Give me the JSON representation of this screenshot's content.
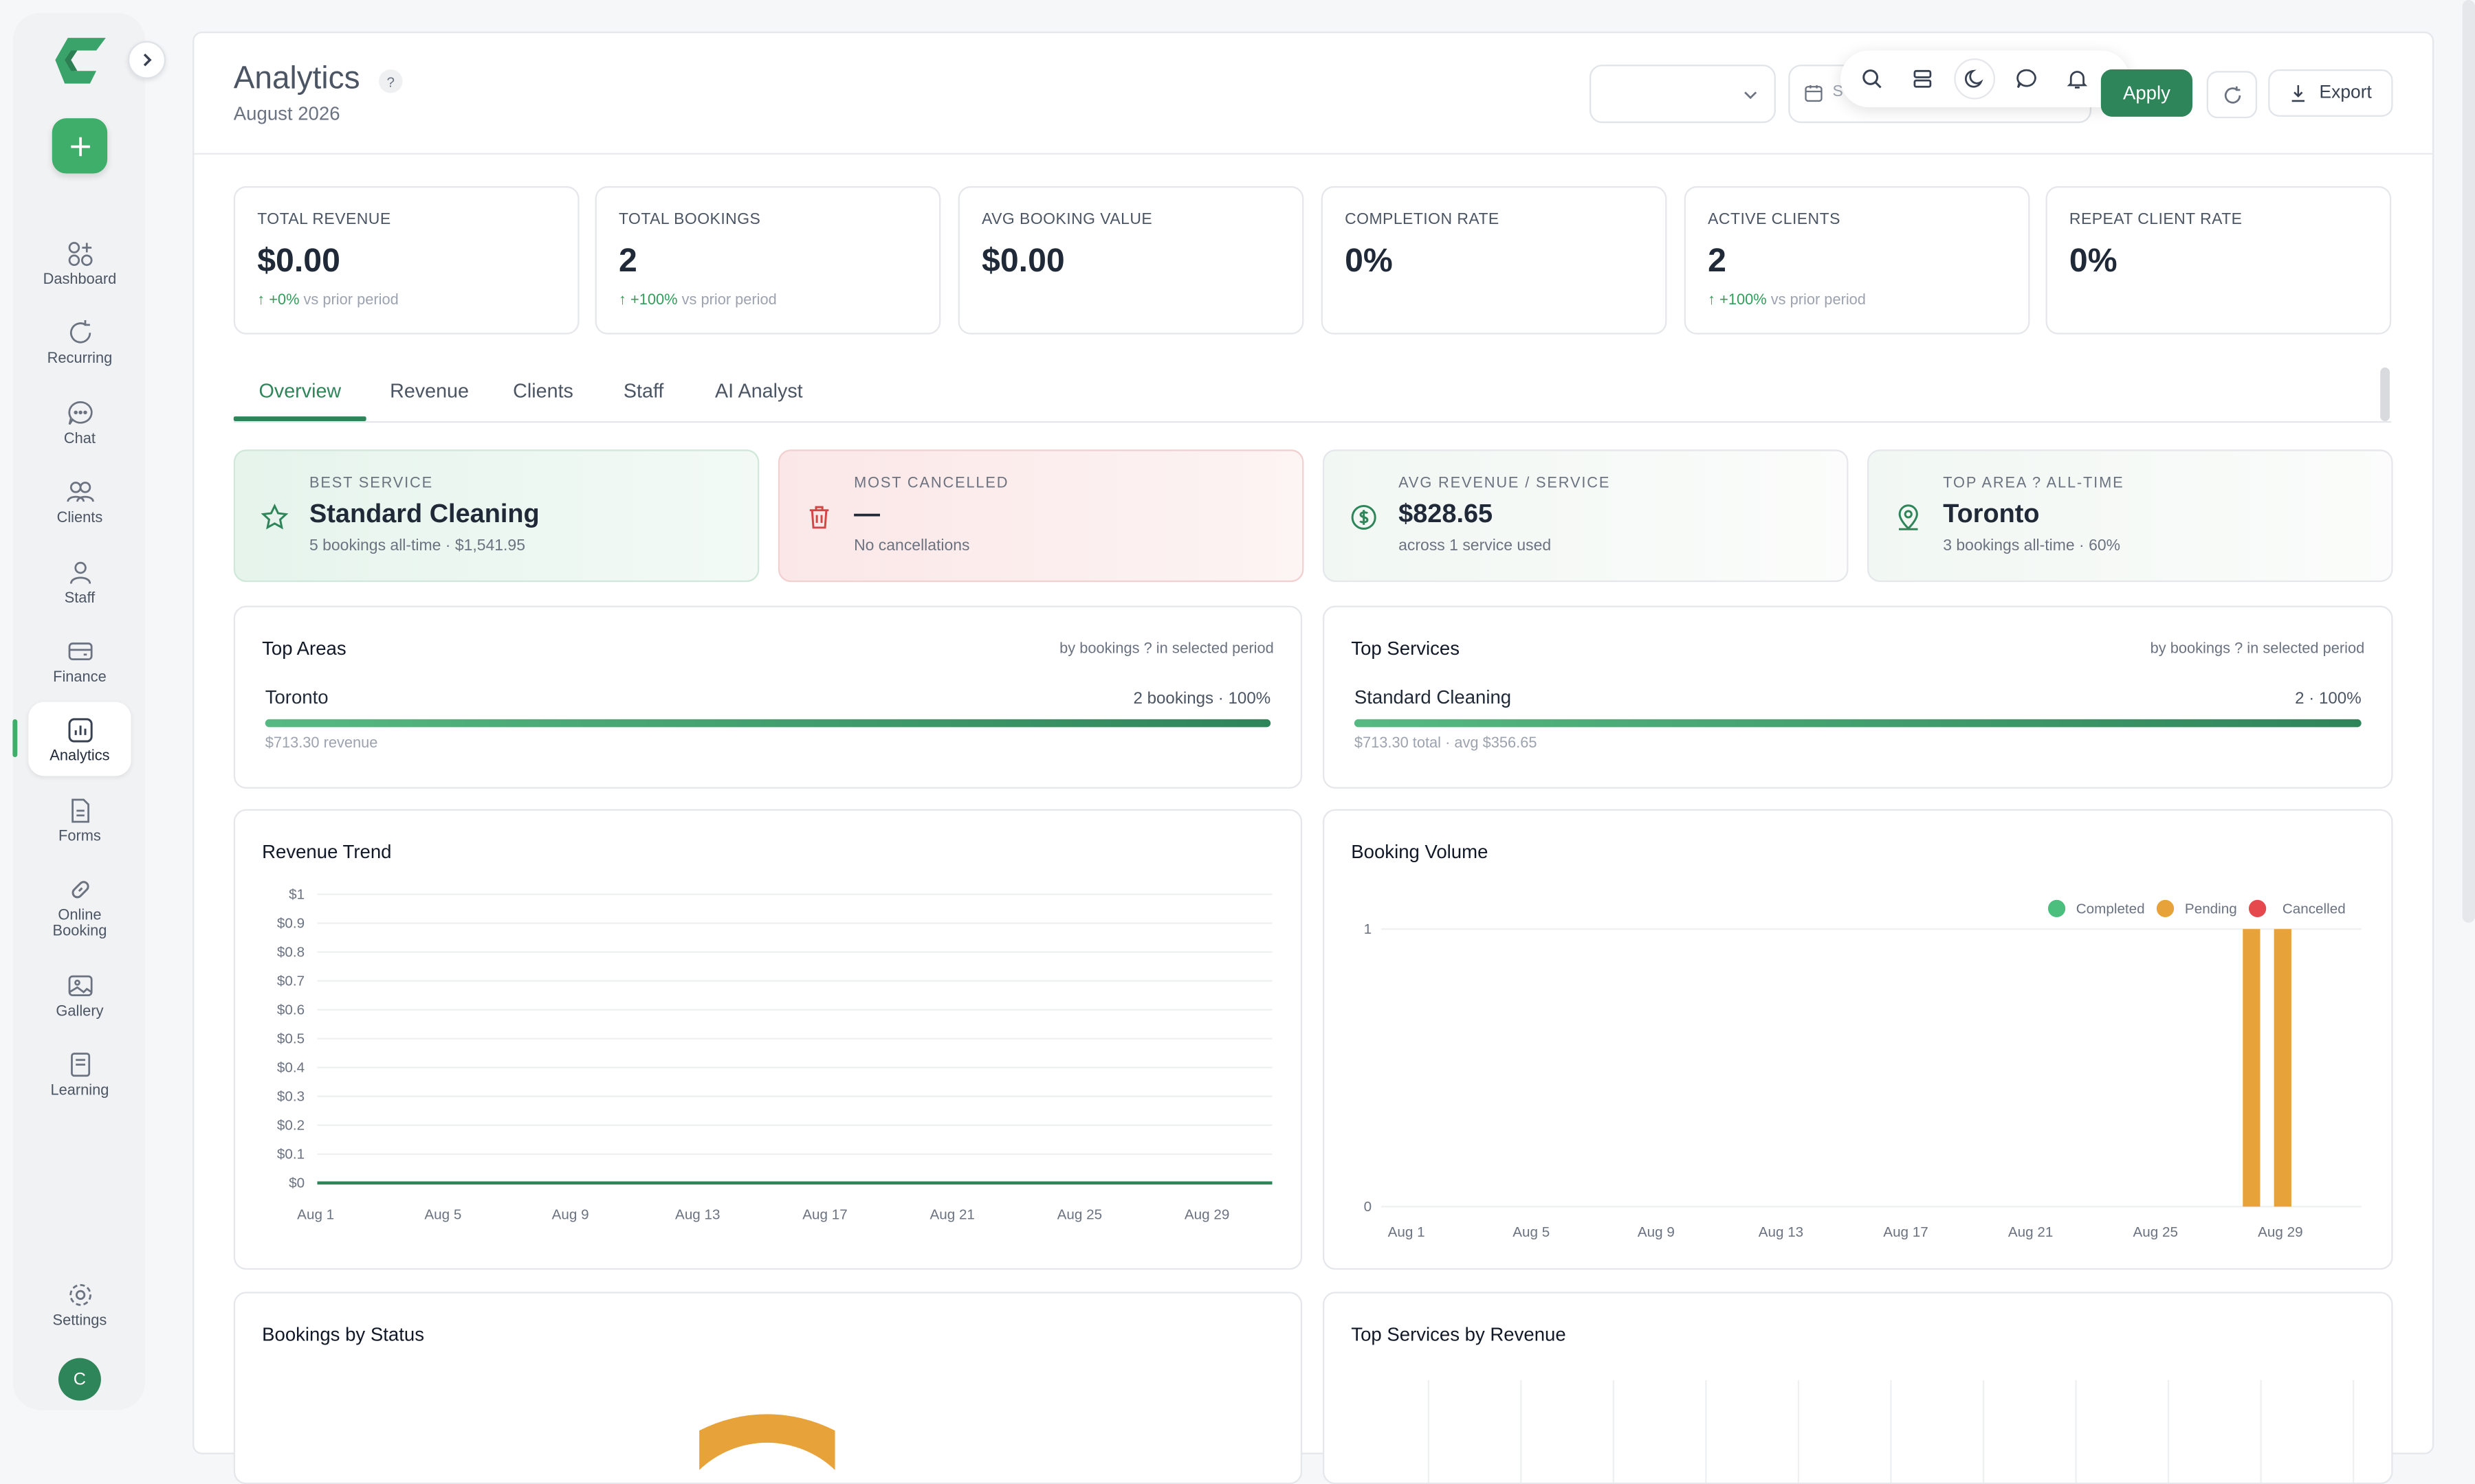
{
  "sidebar": {
    "items": [
      {
        "label": "Dashboard",
        "icon": "dashboard-icon"
      },
      {
        "label": "Recurring",
        "icon": "refresh-icon"
      },
      {
        "label": "Chat",
        "icon": "chat-icon"
      },
      {
        "label": "Clients",
        "icon": "users-icon"
      },
      {
        "label": "Staff",
        "icon": "user-icon"
      },
      {
        "label": "Finance",
        "icon": "wallet-icon"
      },
      {
        "label": "Analytics",
        "icon": "analytics-icon",
        "active": true
      },
      {
        "label": "Forms",
        "icon": "document-icon"
      },
      {
        "label": "Online Booking",
        "icon": "link-icon"
      },
      {
        "label": "Gallery",
        "icon": "image-icon"
      },
      {
        "label": "Learning",
        "icon": "book-icon"
      }
    ],
    "settings_label": "Settings",
    "avatar_initial": "C"
  },
  "header": {
    "title": "Analytics",
    "help": "?",
    "subtitle": "August 2026",
    "date_placeholder": "S",
    "apply_label": "Apply",
    "export_label": "Export"
  },
  "kpis": [
    {
      "label": "TOTAL REVENUE",
      "value": "$0.00",
      "delta": "+0%",
      "delta_note": "vs prior period"
    },
    {
      "label": "TOTAL BOOKINGS",
      "value": "2",
      "delta": "+100%",
      "delta_note": "vs prior period"
    },
    {
      "label": "AVG BOOKING VALUE",
      "value": "$0.00",
      "delta": "",
      "delta_note": ""
    },
    {
      "label": "COMPLETION RATE",
      "value": "0%",
      "delta": "",
      "delta_note": ""
    },
    {
      "label": "ACTIVE CLIENTS",
      "value": "2",
      "delta": "+100%",
      "delta_note": "vs prior period"
    },
    {
      "label": "REPEAT CLIENT RATE",
      "value": "0%",
      "delta": "",
      "delta_note": ""
    }
  ],
  "tabs": [
    "Overview",
    "Revenue",
    "Clients",
    "Staff",
    "AI Analyst"
  ],
  "highlights": [
    {
      "label": "BEST SERVICE",
      "value": "Standard Cleaning",
      "sub": "5 bookings all-time · $1,541.95"
    },
    {
      "label": "MOST CANCELLED",
      "value": "—",
      "sub": "No cancellations"
    },
    {
      "label": "AVG REVENUE / SERVICE",
      "value": "$828.65",
      "sub": "across 1 service used"
    },
    {
      "label": "TOP AREA ? ALL-TIME",
      "value": "Toronto",
      "sub": "3 bookings all-time · 60%"
    }
  ],
  "top_areas": {
    "title": "Top Areas",
    "note": "by bookings ? in selected period",
    "row": {
      "name": "Toronto",
      "value": "2 bookings · 100%",
      "share": 1.0,
      "sub": "$713.30 revenue"
    }
  },
  "top_services": {
    "title": "Top Services",
    "note": "by bookings ? in selected period",
    "row": {
      "name": "Standard Cleaning",
      "value": "2 · 100%",
      "share": 1.0,
      "sub": "$713.30 total · avg $356.65"
    }
  },
  "revenue_trend": {
    "title": "Revenue Trend"
  },
  "booking_volume": {
    "title": "Booking Volume"
  },
  "bookings_by_status": {
    "title": "Bookings by Status"
  },
  "top_services_revenue": {
    "title": "Top Services by Revenue"
  },
  "colors": {
    "accent": "#2f855a",
    "completed": "#4cbf7f",
    "pending": "#e8a23a",
    "cancelled": "#e5484d"
  },
  "chart_data": [
    {
      "type": "line",
      "title": "Revenue Trend",
      "x_ticks": [
        "Aug 1",
        "Aug 5",
        "Aug 9",
        "Aug 13",
        "Aug 17",
        "Aug 21",
        "Aug 25",
        "Aug 29"
      ],
      "y_ticks": [
        "$0",
        "$0.1",
        "$0.2",
        "$0.3",
        "$0.4",
        "$0.5",
        "$0.6",
        "$0.7",
        "$0.8",
        "$0.9",
        "$1"
      ],
      "ylim": [
        0,
        1
      ],
      "series": [
        {
          "values": [
            0,
            0,
            0,
            0,
            0,
            0,
            0,
            0,
            0,
            0,
            0,
            0,
            0,
            0,
            0,
            0,
            0,
            0,
            0,
            0,
            0,
            0,
            0,
            0,
            0,
            0,
            0,
            0,
            0,
            0,
            0
          ]
        }
      ],
      "grid": true
    },
    {
      "type": "bar",
      "title": "Booking Volume",
      "x_ticks": [
        "Aug 1",
        "Aug 5",
        "Aug 9",
        "Aug 13",
        "Aug 17",
        "Aug 21",
        "Aug 25",
        "Aug 29"
      ],
      "y_ticks": [
        "0",
        "1"
      ],
      "ylim": [
        0,
        1
      ],
      "legend": "top-right",
      "series": [
        {
          "name": "Completed",
          "values": {}
        },
        {
          "name": "Pending",
          "values": {
            "Aug 28": 1,
            "Aug 29": 1
          }
        },
        {
          "name": "Cancelled",
          "values": {}
        }
      ]
    }
  ]
}
